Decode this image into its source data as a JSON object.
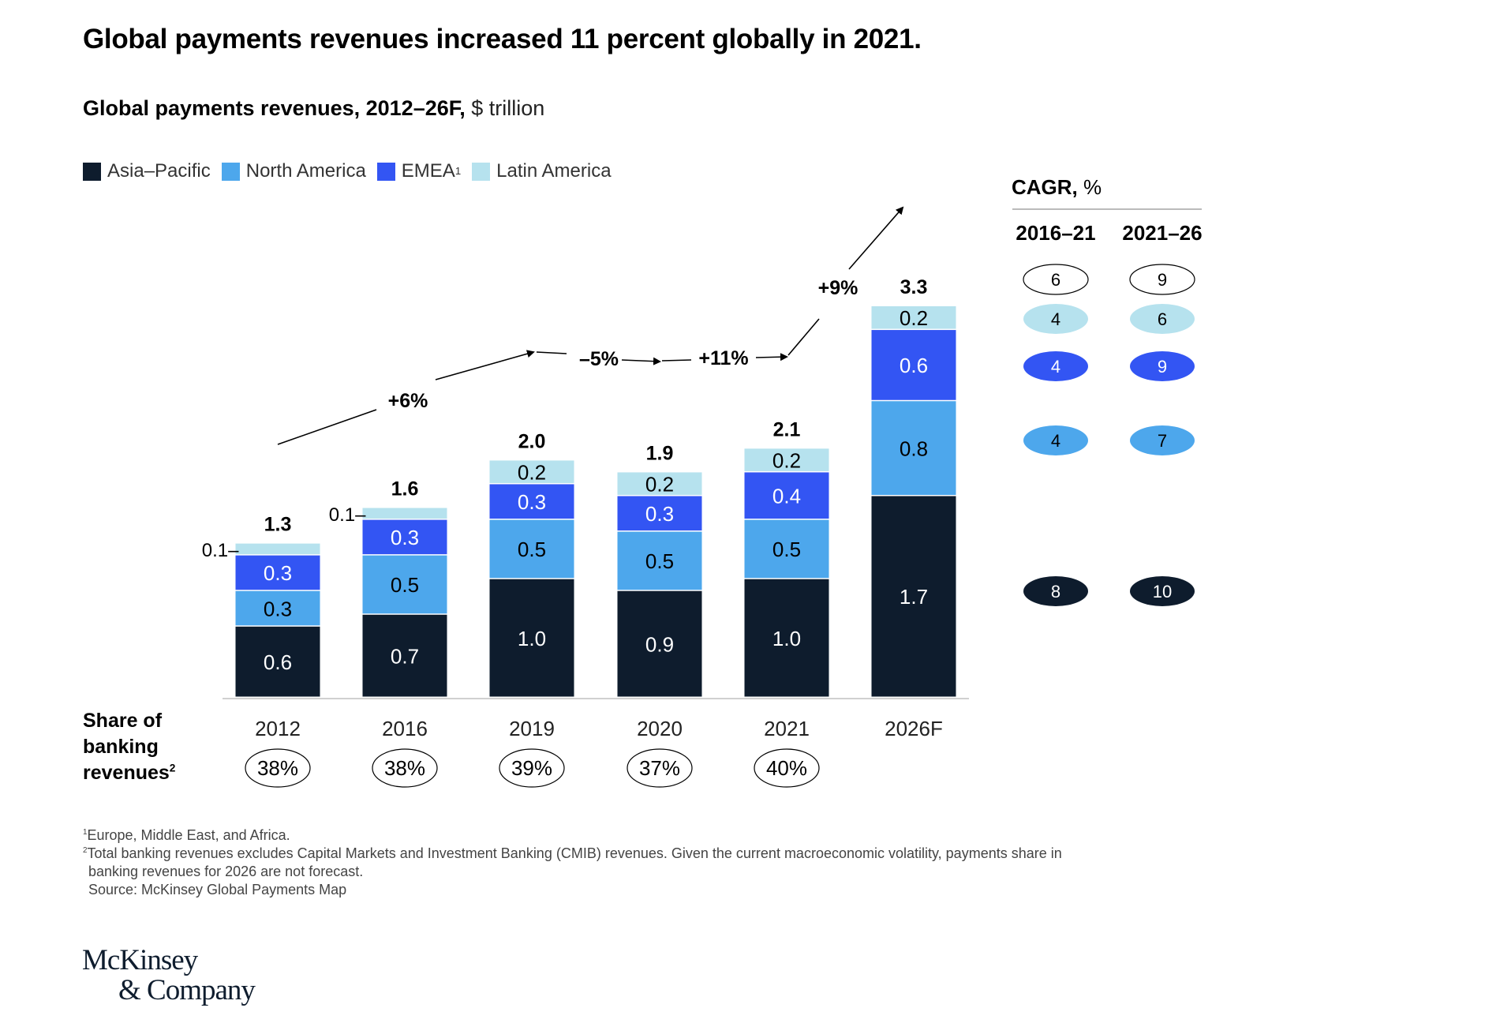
{
  "title": "Global payments revenues increased 11 percent globally in 2021.",
  "subtitle": {
    "bold": "Global payments revenues, 2012–26F,",
    "unit": " $ trillion"
  },
  "legend": [
    {
      "label": "Asia–Pacific",
      "sup": "",
      "color": "#0e1c2d"
    },
    {
      "label": "North America",
      "sup": "",
      "color": "#4da7ec"
    },
    {
      "label": "EMEA",
      "sup": "1",
      "color": "#3355f3"
    },
    {
      "label": "Latin America",
      "sup": "",
      "color": "#b6e2ee"
    }
  ],
  "chart_data": {
    "type": "bar",
    "stacked": true,
    "title": "Global payments revenues, 2012–26F, $ trillion",
    "xlabel": "",
    "ylabel": "$ trillion",
    "categories": [
      "2012",
      "2016",
      "2019",
      "2020",
      "2021",
      "2026F"
    ],
    "series": [
      {
        "name": "Asia–Pacific",
        "color": "#0e1c2d",
        "text_color": "#ffffff",
        "values": [
          0.6,
          0.7,
          1.0,
          0.9,
          1.0,
          1.7
        ]
      },
      {
        "name": "North America",
        "color": "#4da7ec",
        "text_color": "#000000",
        "values": [
          0.3,
          0.5,
          0.5,
          0.5,
          0.5,
          0.8
        ]
      },
      {
        "name": "EMEA",
        "color": "#3355f3",
        "text_color": "#ffffff",
        "values": [
          0.3,
          0.3,
          0.3,
          0.3,
          0.4,
          0.6
        ]
      },
      {
        "name": "Latin America",
        "color": "#b6e2ee",
        "text_color": "#000000",
        "values": [
          0.1,
          0.1,
          0.2,
          0.2,
          0.2,
          0.2
        ]
      }
    ],
    "totals": [
      "1.3",
      "1.6",
      "2.0",
      "1.9",
      "2.1",
      "3.3"
    ],
    "segment_labels": [
      [
        "0.6",
        "0.3",
        "0.3",
        "0.1–"
      ],
      [
        "0.7",
        "0.5",
        "0.3",
        "0.1–"
      ],
      [
        "1.0",
        "0.5",
        "0.3",
        "0.2"
      ],
      [
        "0.9",
        "0.5",
        "0.3",
        "0.2"
      ],
      [
        "1.0",
        "0.5",
        "0.4",
        "0.2"
      ],
      [
        "1.7",
        "0.8",
        "0.6",
        "0.2"
      ]
    ],
    "growth_annotations": [
      {
        "from": "2012",
        "to": "2019",
        "label": "+6%"
      },
      {
        "from": "2019",
        "to": "2020",
        "label": "–5%"
      },
      {
        "from": "2020",
        "to": "2021",
        "label": "+11%"
      },
      {
        "from": "2021",
        "to": "2026F",
        "label": "+9%"
      }
    ],
    "ylim": [
      0,
      3.3
    ],
    "grid": false,
    "legend_position": "top-left"
  },
  "share": {
    "label_lines": [
      "Share of",
      "banking",
      "revenues"
    ],
    "label_sup": "2",
    "values": [
      "38%",
      "38%",
      "39%",
      "37%",
      "40%",
      ""
    ]
  },
  "cagr": {
    "heading_bold": "CAGR,",
    "heading_unit": " %",
    "columns": [
      "2016–21",
      "2021–26"
    ],
    "rows": [
      {
        "region": "Total",
        "fill": "#ffffff",
        "text": "#000000",
        "outlined": true,
        "values": [
          "6",
          "9"
        ]
      },
      {
        "region": "Latin America",
        "fill": "#b6e2ee",
        "text": "#000000",
        "outlined": false,
        "values": [
          "4",
          "6"
        ]
      },
      {
        "region": "EMEA",
        "fill": "#3355f3",
        "text": "#ffffff",
        "outlined": false,
        "values": [
          "4",
          "9"
        ]
      },
      {
        "region": "North America",
        "fill": "#4da7ec",
        "text": "#000000",
        "outlined": false,
        "values": [
          "4",
          "7"
        ]
      },
      {
        "region": "Asia–Pacific",
        "fill": "#0e1c2d",
        "text": "#ffffff",
        "outlined": false,
        "values": [
          "8",
          "10"
        ]
      }
    ]
  },
  "footnotes": [
    {
      "sup": "1",
      "text": "Europe, Middle East, and Africa."
    },
    {
      "sup": "2",
      "text": "Total banking revenues excludes Capital Markets and Investment Banking (CMIB) revenues. Given the current macroeconomic volatility, payments share in"
    },
    {
      "sup": "",
      "text": "  banking revenues for 2026 are not forecast."
    },
    {
      "sup": "",
      "text": "  Source: McKinsey Global Payments Map"
    }
  ],
  "logo": {
    "line1": "McKinsey",
    "line2": "& Company"
  }
}
